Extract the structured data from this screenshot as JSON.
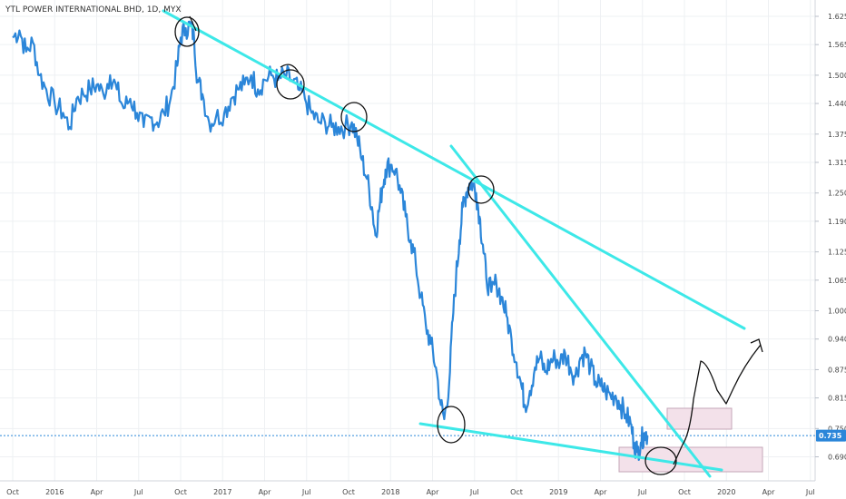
{
  "chart_data": {
    "type": "line",
    "title": "YTL POWER INTERNATIONAL BHD, 1D, MYX",
    "xlabel": "",
    "ylabel": "",
    "x_ticks": [
      {
        "t": 0.0,
        "label": "Oct"
      },
      {
        "t": 0.25,
        "label": "2016"
      },
      {
        "t": 0.5,
        "label": "Apr"
      },
      {
        "t": 0.75,
        "label": "Jul"
      },
      {
        "t": 1.0,
        "label": "Oct"
      },
      {
        "t": 1.25,
        "label": "2017"
      },
      {
        "t": 1.5,
        "label": "Apr"
      },
      {
        "t": 1.75,
        "label": "Jul"
      },
      {
        "t": 2.0,
        "label": "Oct"
      },
      {
        "t": 2.25,
        "label": "2018"
      },
      {
        "t": 2.5,
        "label": "Apr"
      },
      {
        "t": 2.75,
        "label": "Jul"
      },
      {
        "t": 3.0,
        "label": "Oct"
      },
      {
        "t": 3.25,
        "label": "2019"
      },
      {
        "t": 3.5,
        "label": "Apr"
      },
      {
        "t": 3.75,
        "label": "Jul"
      },
      {
        "t": 4.0,
        "label": "Oct"
      },
      {
        "t": 4.25,
        "label": "2020"
      },
      {
        "t": 4.5,
        "label": "Apr"
      },
      {
        "t": 4.75,
        "label": "Jul"
      }
    ],
    "y_ticks": [
      "1.625",
      "1.565",
      "1.500",
      "1.440",
      "1.375",
      "1.315",
      "1.250",
      "1.190",
      "1.125",
      "1.065",
      "1.000",
      "0.940",
      "0.875",
      "0.815",
      "0.750",
      "0.690"
    ],
    "current_price": 0.735,
    "current_price_label": "0.735",
    "series": [
      {
        "values": [
          [
            0.0,
            1.58
          ],
          [
            0.04,
            1.595
          ],
          [
            0.08,
            1.55
          ],
          [
            0.12,
            1.57
          ],
          [
            0.16,
            1.5
          ],
          [
            0.2,
            1.47
          ],
          [
            0.25,
            1.44
          ],
          [
            0.3,
            1.42
          ],
          [
            0.34,
            1.39
          ],
          [
            0.38,
            1.45
          ],
          [
            0.42,
            1.46
          ],
          [
            0.46,
            1.47
          ],
          [
            0.5,
            1.48
          ],
          [
            0.54,
            1.46
          ],
          [
            0.58,
            1.5
          ],
          [
            0.62,
            1.47
          ],
          [
            0.66,
            1.43
          ],
          [
            0.7,
            1.45
          ],
          [
            0.74,
            1.42
          ],
          [
            0.78,
            1.39
          ],
          [
            0.82,
            1.41
          ],
          [
            0.86,
            1.4
          ],
          [
            0.9,
            1.42
          ],
          [
            0.94,
            1.45
          ],
          [
            0.98,
            1.52
          ],
          [
            1.0,
            1.58
          ],
          [
            1.03,
            1.6
          ],
          [
            1.06,
            1.605
          ],
          [
            1.08,
            1.58
          ],
          [
            1.1,
            1.49
          ],
          [
            1.13,
            1.46
          ],
          [
            1.17,
            1.4
          ],
          [
            1.21,
            1.41
          ],
          [
            1.26,
            1.42
          ],
          [
            1.3,
            1.45
          ],
          [
            1.34,
            1.47
          ],
          [
            1.38,
            1.48
          ],
          [
            1.42,
            1.5
          ],
          [
            1.46,
            1.47
          ],
          [
            1.5,
            1.49
          ],
          [
            1.54,
            1.5
          ],
          [
            1.58,
            1.49
          ],
          [
            1.62,
            1.5
          ],
          [
            1.66,
            1.49
          ],
          [
            1.7,
            1.47
          ],
          [
            1.74,
            1.45
          ],
          [
            1.78,
            1.42
          ],
          [
            1.82,
            1.4
          ],
          [
            1.86,
            1.4
          ],
          [
            1.9,
            1.39
          ],
          [
            1.94,
            1.39
          ],
          [
            1.98,
            1.39
          ],
          [
            2.02,
            1.4
          ],
          [
            2.05,
            1.37
          ],
          [
            2.08,
            1.32
          ],
          [
            2.11,
            1.28
          ],
          [
            2.14,
            1.22
          ],
          [
            2.16,
            1.16
          ],
          [
            2.18,
            1.21
          ],
          [
            2.2,
            1.26
          ],
          [
            2.22,
            1.3
          ],
          [
            2.25,
            1.31
          ],
          [
            2.28,
            1.3
          ],
          [
            2.31,
            1.25
          ],
          [
            2.34,
            1.2
          ],
          [
            2.37,
            1.15
          ],
          [
            2.4,
            1.1
          ],
          [
            2.43,
            1.03
          ],
          [
            2.46,
            0.97
          ],
          [
            2.49,
            0.93
          ],
          [
            2.52,
            0.88
          ],
          [
            2.55,
            0.8
          ],
          [
            2.57,
            0.77
          ],
          [
            2.6,
            0.85
          ],
          [
            2.62,
            0.98
          ],
          [
            2.64,
            1.07
          ],
          [
            2.66,
            1.15
          ],
          [
            2.68,
            1.22
          ],
          [
            2.7,
            1.25
          ],
          [
            2.72,
            1.27
          ],
          [
            2.74,
            1.27
          ],
          [
            2.76,
            1.25
          ],
          [
            2.78,
            1.2
          ],
          [
            2.8,
            1.14
          ],
          [
            2.82,
            1.07
          ],
          [
            2.85,
            1.04
          ],
          [
            2.88,
            1.06
          ],
          [
            2.91,
            1.03
          ],
          [
            2.94,
            0.99
          ],
          [
            2.97,
            0.94
          ],
          [
            3.0,
            0.89
          ],
          [
            3.03,
            0.84
          ],
          [
            3.05,
            0.8
          ],
          [
            3.08,
            0.83
          ],
          [
            3.11,
            0.88
          ],
          [
            3.14,
            0.9
          ],
          [
            3.17,
            0.87
          ],
          [
            3.2,
            0.89
          ],
          [
            3.23,
            0.9
          ],
          [
            3.26,
            0.89
          ],
          [
            3.29,
            0.91
          ],
          [
            3.32,
            0.88
          ],
          [
            3.35,
            0.86
          ],
          [
            3.38,
            0.9
          ],
          [
            3.41,
            0.91
          ],
          [
            3.44,
            0.88
          ],
          [
            3.47,
            0.85
          ],
          [
            3.5,
            0.84
          ],
          [
            3.53,
            0.83
          ],
          [
            3.56,
            0.82
          ],
          [
            3.59,
            0.82
          ],
          [
            3.62,
            0.8
          ],
          [
            3.65,
            0.78
          ],
          [
            3.68,
            0.76
          ],
          [
            3.7,
            0.72
          ],
          [
            3.72,
            0.7
          ],
          [
            3.74,
            0.72
          ],
          [
            3.76,
            0.74
          ],
          [
            3.78,
            0.735
          ]
        ]
      }
    ],
    "colors": {
      "price_line": "#2b86d9",
      "trendline": "#3de8e8",
      "annotation_ink": "#111111",
      "box_fill": "#f3e1ea",
      "box_stroke": "#c6a7b8",
      "price_tag": "#2b86d9",
      "grid": "#eef0f3"
    }
  }
}
